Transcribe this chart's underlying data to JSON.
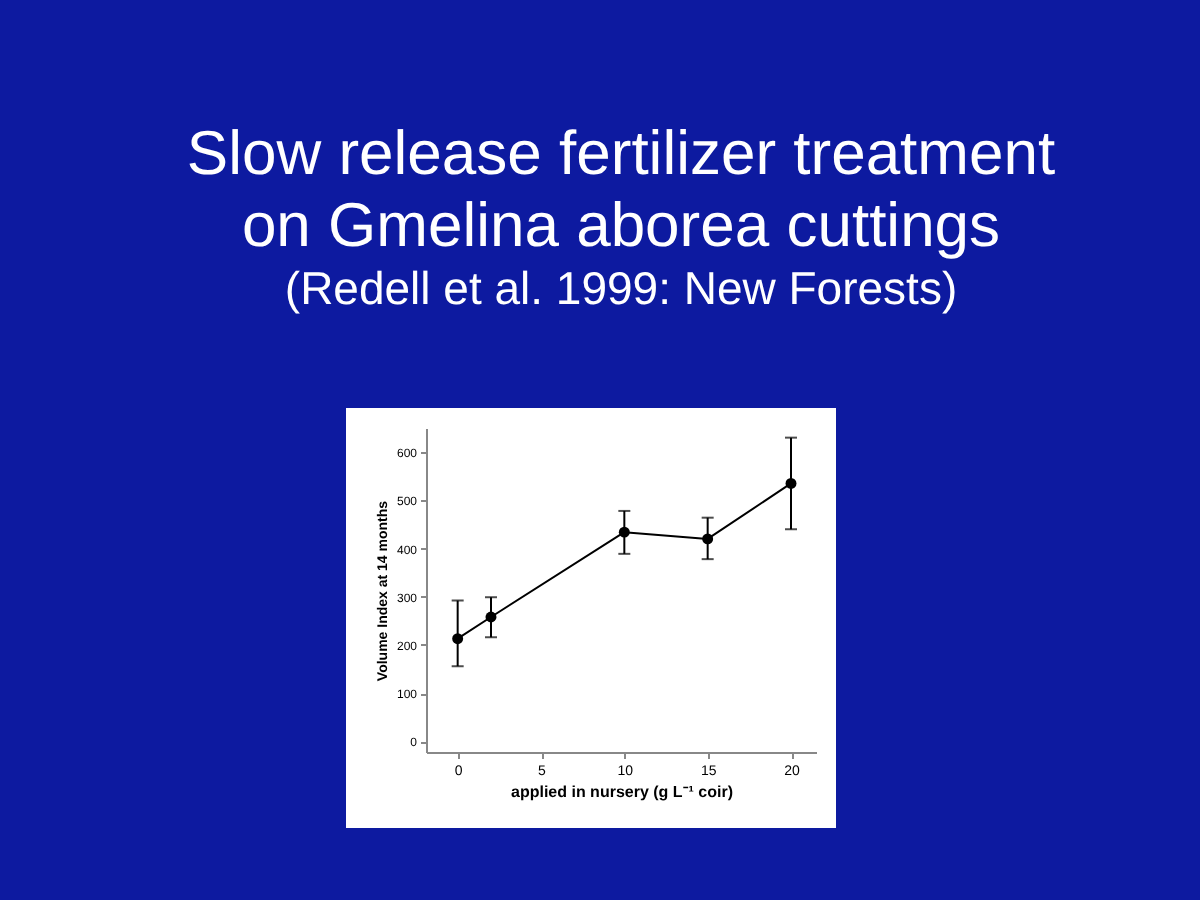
{
  "chart_data": {
    "type": "line",
    "title": "Slow release fertilizer treatment on Gmelina aborea cuttings",
    "subtitle": "(Redell et al. 1999: New Forests)",
    "xlabel": "applied in nursery (g L⁻¹ coir)",
    "ylabel": "Volume Index at 14 months",
    "x": [
      0,
      2,
      10,
      15,
      20
    ],
    "values": [
      213,
      258,
      434,
      420,
      535
    ],
    "errors": [
      [
        156,
        292
      ],
      [
        216,
        299
      ],
      [
        389,
        478
      ],
      [
        378,
        464
      ],
      [
        440,
        630
      ]
    ],
    "color": "#000000",
    "xlim": [
      -1.9,
      21.5
    ],
    "ylim": [
      -22,
      650
    ],
    "xticks": [
      0,
      5,
      10,
      15,
      20
    ],
    "yticks": [
      0,
      100,
      200,
      300,
      400,
      500,
      600
    ],
    "grid": false,
    "marker": "circle",
    "line_style": "solid"
  }
}
